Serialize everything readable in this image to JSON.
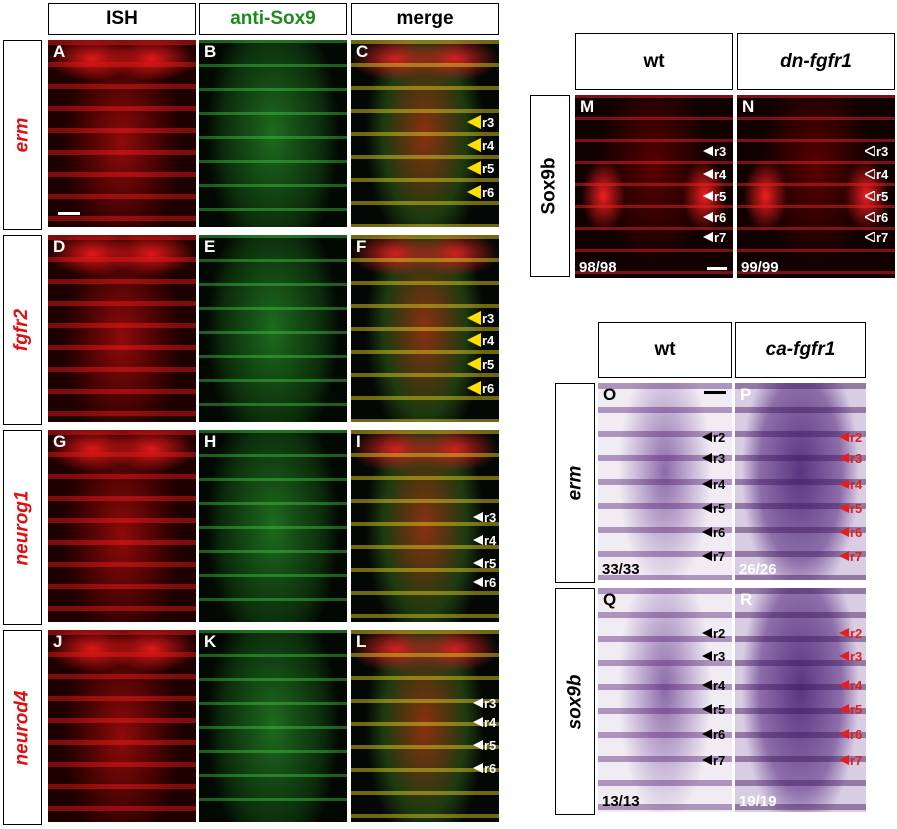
{
  "left": {
    "columns": [
      "ISH",
      "anti-Sox9",
      "merge"
    ],
    "rows": [
      {
        "label": "erm",
        "panels": [
          "A",
          "B",
          "C"
        ],
        "arrows": [
          "r3",
          "r4",
          "r5",
          "r6"
        ]
      },
      {
        "label": "fgfr2",
        "panels": [
          "D",
          "E",
          "F"
        ],
        "arrows": [
          "r3",
          "r4",
          "r5",
          "r6"
        ]
      },
      {
        "label": "neurog1",
        "panels": [
          "G",
          "H",
          "I"
        ],
        "arrows": [
          "r3",
          "r4",
          "r5",
          "r6"
        ]
      },
      {
        "label": "neurod4",
        "panels": [
          "J",
          "K",
          "L"
        ],
        "arrows": [
          "r3",
          "r4",
          "r5",
          "r6"
        ]
      }
    ]
  },
  "top_right": {
    "columns": [
      "wt",
      "dn-fgfr1"
    ],
    "row_label": "Sox9b",
    "panels": [
      {
        "letter": "M",
        "arrows": [
          "r3",
          "r4",
          "r5",
          "r6",
          "r7"
        ],
        "count": "98/98"
      },
      {
        "letter": "N",
        "arrows": [
          "r3",
          "r4",
          "r5",
          "r6",
          "r7"
        ],
        "count": "99/99"
      }
    ]
  },
  "bottom_right": {
    "columns": [
      "wt",
      "ca-fgfr1"
    ],
    "rows": [
      {
        "label": "erm",
        "panels": [
          {
            "letter": "O",
            "arrows": [
              "r2",
              "r3",
              "r4",
              "r5",
              "r6",
              "r7"
            ],
            "count": "33/33"
          },
          {
            "letter": "P",
            "arrows": [
              "r2",
              "r3",
              "r4",
              "r5",
              "r6",
              "r7"
            ],
            "count": "26/26"
          }
        ]
      },
      {
        "label": "sox9b",
        "panels": [
          {
            "letter": "Q",
            "arrows": [
              "r2",
              "r3",
              "r4",
              "r5",
              "r6",
              "r7"
            ],
            "count": "13/13"
          },
          {
            "letter": "R",
            "arrows": [
              "r2",
              "r3",
              "r4",
              "r5",
              "r6",
              "r7"
            ],
            "count": "19/19"
          }
        ]
      }
    ]
  }
}
